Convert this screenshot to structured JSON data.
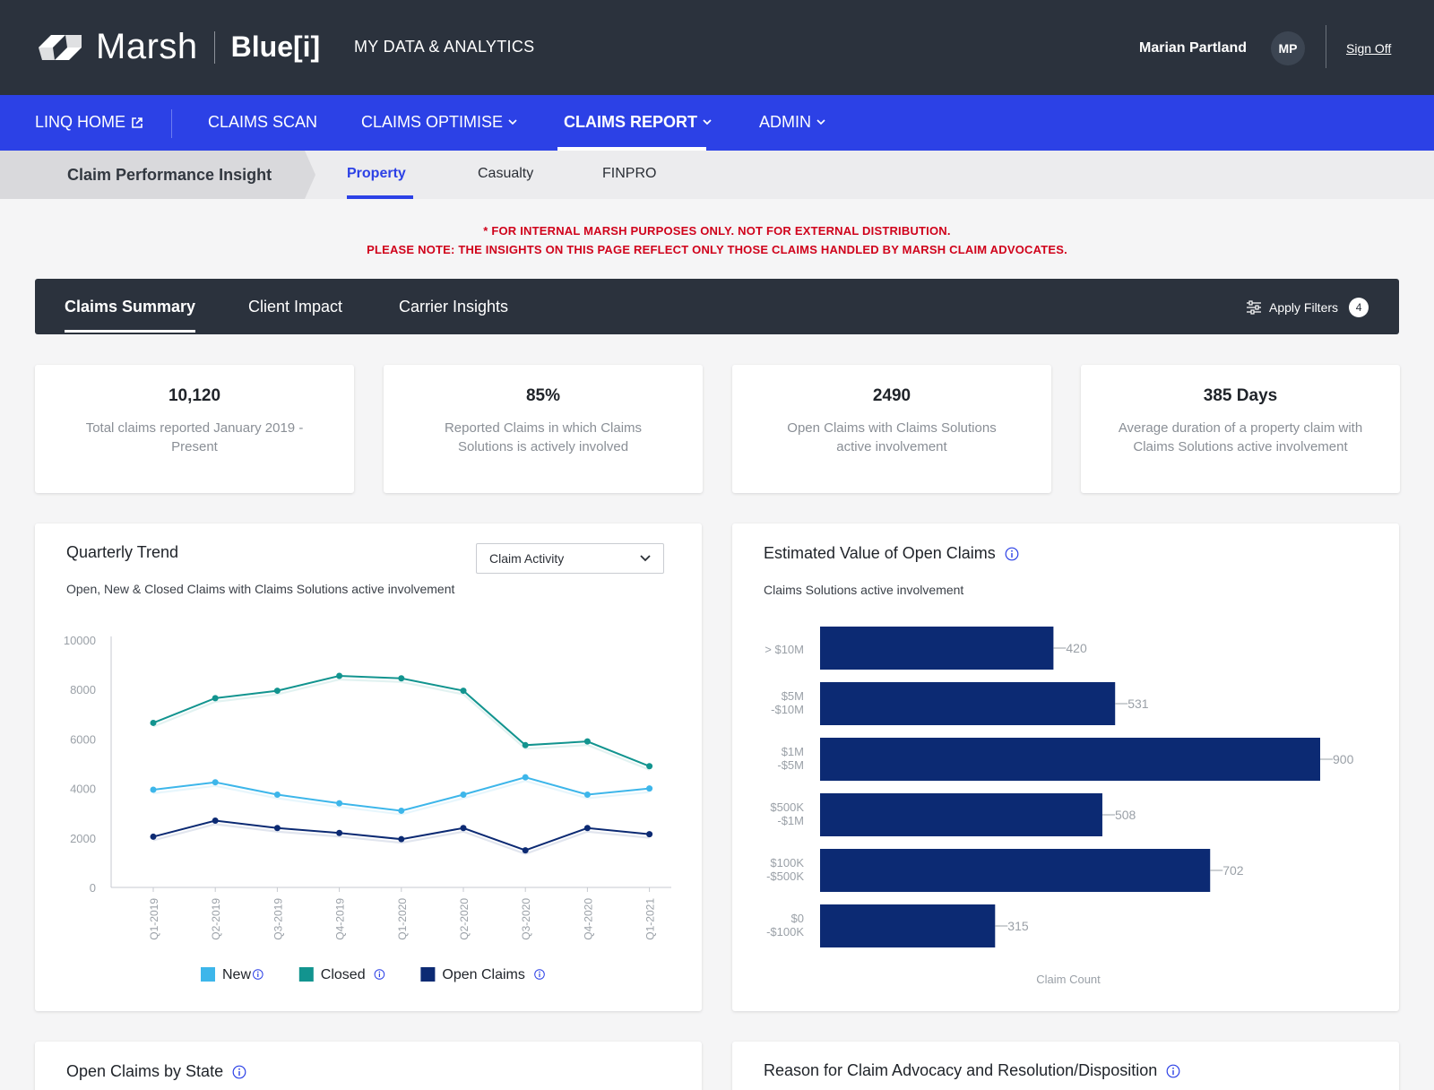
{
  "header": {
    "brand": "Marsh",
    "product": "Blue[i]",
    "app_title": "MY DATA & ANALYTICS",
    "user_name": "Marian Partland",
    "user_initials": "MP",
    "sign_off": "Sign Off"
  },
  "nav": {
    "items": [
      {
        "label": "LINQ HOME"
      },
      {
        "label": "CLAIMS SCAN"
      },
      {
        "label": "CLAIMS OPTIMISE"
      },
      {
        "label": "CLAIMS REPORT"
      },
      {
        "label": "ADMIN"
      }
    ]
  },
  "subnav": {
    "title": "Claim Performance Insight",
    "tabs": [
      {
        "label": "Property"
      },
      {
        "label": "Casualty"
      },
      {
        "label": "FINPRO"
      }
    ]
  },
  "notices": {
    "line1": "* FOR INTERNAL MARSH PURPOSES ONLY. NOT FOR EXTERNAL DISTRIBUTION.",
    "line2": "PLEASE NOTE: THE INSIGHTS ON THIS PAGE REFLECT ONLY THOSE CLAIMS HANDLED BY MARSH CLAIM ADVOCATES."
  },
  "tabs": {
    "items": [
      {
        "label": "Claims Summary"
      },
      {
        "label": "Client Impact"
      },
      {
        "label": "Carrier Insights"
      }
    ],
    "filters_label": "Apply Filters",
    "filters_count": "4"
  },
  "kpis": [
    {
      "value": "10,120",
      "label": "Total claims reported  January  2019 - Present"
    },
    {
      "value": "85%",
      "label": "Reported Claims in which Claims Solutions is actively involved"
    },
    {
      "value": "2490",
      "label": "Open Claims with Claims Solutions active involvement"
    },
    {
      "value": "385 Days",
      "label": "Average duration of a property claim with Claims Solutions active involvement"
    }
  ],
  "quarterly": {
    "title": "Quarterly Trend",
    "subtitle": "Open, New & Closed Claims with Claims Solutions active involvement",
    "dropdown_value": "Claim Activity"
  },
  "estimated": {
    "title": "Estimated Value of Open Claims",
    "subtitle": "Claims Solutions active involvement",
    "xlabel": "Claim  Count"
  },
  "bottom": {
    "left_title": "Open Claims by State",
    "right_title": "Reason for Claim Advocacy and Resolution/Disposition"
  },
  "colors": {
    "new": "#3db6ea",
    "closed": "#12948f",
    "open": "#0c2a73",
    "bar": "#0c2a73"
  },
  "chart_data": [
    {
      "type": "line",
      "title": "Quarterly Trend",
      "categories": [
        "Q1-2019",
        "Q2-2019",
        "Q3-2019",
        "Q4-2019",
        "Q1-2020",
        "Q2-2020",
        "Q3-2020",
        "Q4-2020",
        "Q1-2021"
      ],
      "series": [
        {
          "name": "New",
          "values": [
            3950,
            4250,
            3750,
            3400,
            3100,
            3750,
            4450,
            3750,
            4000
          ]
        },
        {
          "name": "Closed",
          "values": [
            6650,
            7650,
            7950,
            8550,
            8450,
            7950,
            5750,
            5900,
            4900
          ]
        },
        {
          "name": "Open Claims",
          "values": [
            2050,
            2700,
            2400,
            2200,
            1950,
            2400,
            1500,
            2400,
            2150
          ]
        }
      ],
      "yticks": [
        "10000",
        "8000",
        "6000",
        "4000",
        "2000",
        "0"
      ],
      "ylim": [
        0,
        10000
      ],
      "legend": "bottom"
    },
    {
      "type": "bar",
      "orientation": "horizontal",
      "title": "Estimated Value of Open Claims",
      "categories": [
        [
          "> $10M"
        ],
        [
          "$5M",
          "-$10M"
        ],
        [
          "$1M",
          "-$5M"
        ],
        [
          "$500K",
          "-$1M"
        ],
        [
          "$100K",
          "-$500K"
        ],
        [
          "$0",
          "-$100K"
        ]
      ],
      "values": [
        420,
        531,
        900,
        508,
        702,
        315
      ],
      "labels": [
        "420",
        "531",
        "900",
        "508",
        "702",
        "315"
      ],
      "xlabel": "Claim  Count",
      "xlim": [
        0,
        900
      ]
    }
  ]
}
